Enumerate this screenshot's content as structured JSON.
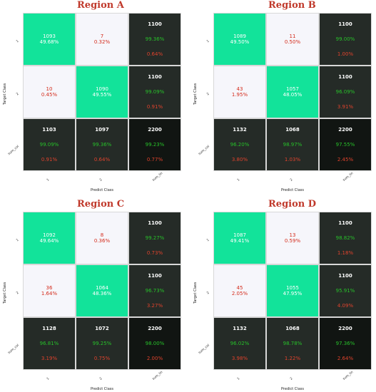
{
  "chart_data": [
    {
      "type": "heatmap",
      "title": "Region A",
      "xlabel": "Predict Class",
      "ylabel": "Target Class",
      "x_tick_labels": [
        "1",
        "2",
        "sum_lin"
      ],
      "y_tick_labels": [
        "1",
        "2",
        "sum_col"
      ],
      "matrix": [
        [
          1093,
          7
        ],
        [
          10,
          1090
        ]
      ],
      "matrix_pct": [
        "49.68%",
        "0.32%",
        "0.45%",
        "49.55%"
      ],
      "row_totals": [
        1100,
        1100
      ],
      "row_correct_pct": [
        "99.36%",
        "99.09%"
      ],
      "row_error_pct": [
        "0.64%",
        "0.91%"
      ],
      "col_totals": [
        1103,
        1097
      ],
      "col_correct_pct": [
        "99.09%",
        "99.36%"
      ],
      "col_error_pct": [
        "0.91%",
        "0.64%"
      ],
      "grand_total": 2200,
      "overall_accuracy": "99.23%",
      "overall_error": "0.77%"
    },
    {
      "type": "heatmap",
      "title": "Region B",
      "xlabel": "Predict Class",
      "ylabel": "Target Class",
      "x_tick_labels": [
        "1",
        "2",
        "sum_lin"
      ],
      "y_tick_labels": [
        "1",
        "2",
        "sum_col"
      ],
      "matrix": [
        [
          1089,
          11
        ],
        [
          43,
          1057
        ]
      ],
      "matrix_pct": [
        "49.50%",
        "0.50%",
        "1.95%",
        "48.05%"
      ],
      "row_totals": [
        1100,
        1100
      ],
      "row_correct_pct": [
        "99.00%",
        "96.09%"
      ],
      "row_error_pct": [
        "1.00%",
        "3.91%"
      ],
      "col_totals": [
        1132,
        1068
      ],
      "col_correct_pct": [
        "96.20%",
        "98.97%"
      ],
      "col_error_pct": [
        "3.80%",
        "1.03%"
      ],
      "grand_total": 2200,
      "overall_accuracy": "97.55%",
      "overall_error": "2.45%"
    },
    {
      "type": "heatmap",
      "title": "Region C",
      "xlabel": "Predict Class",
      "ylabel": "Target Class",
      "x_tick_labels": [
        "1",
        "2",
        "sum_lin"
      ],
      "y_tick_labels": [
        "1",
        "2",
        "sum_col"
      ],
      "matrix": [
        [
          1092,
          8
        ],
        [
          36,
          1064
        ]
      ],
      "matrix_pct": [
        "49.64%",
        "0.36%",
        "1.64%",
        "48.36%"
      ],
      "row_totals": [
        1100,
        1100
      ],
      "row_correct_pct": [
        "99.27%",
        "96.73%"
      ],
      "row_error_pct": [
        "0.73%",
        "3.27%"
      ],
      "col_totals": [
        1128,
        1072
      ],
      "col_correct_pct": [
        "96.81%",
        "99.25%"
      ],
      "col_error_pct": [
        "3.19%",
        "0.75%"
      ],
      "grand_total": 2200,
      "overall_accuracy": "98.00%",
      "overall_error": "2.00%"
    },
    {
      "type": "heatmap",
      "title": "Region D",
      "xlabel": "Predict Class",
      "ylabel": "Target Class",
      "x_tick_labels": [
        "1",
        "2",
        "sum_lin"
      ],
      "y_tick_labels": [
        "1",
        "2",
        "sum_col"
      ],
      "matrix": [
        [
          1087,
          13
        ],
        [
          45,
          1055
        ]
      ],
      "matrix_pct": [
        "49.41%",
        "0.59%",
        "2.05%",
        "47.95%"
      ],
      "row_totals": [
        1100,
        1100
      ],
      "row_correct_pct": [
        "98.82%",
        "95.91%"
      ],
      "row_error_pct": [
        "1.18%",
        "4.09%"
      ],
      "col_totals": [
        1132,
        1068
      ],
      "col_correct_pct": [
        "96.02%",
        "98.78%"
      ],
      "col_error_pct": [
        "3.98%",
        "1.22%"
      ],
      "grand_total": 2200,
      "overall_accuracy": "97.36%",
      "overall_error": "2.64%"
    }
  ],
  "colors": {
    "correct_cell": "#12e39a",
    "error_cell": "#f6f6fb",
    "summary_cell": "#252b27",
    "total_cell": "#111512",
    "title": "#c0392b",
    "percent_good": "#27c02a",
    "percent_bad": "#e0432d"
  }
}
